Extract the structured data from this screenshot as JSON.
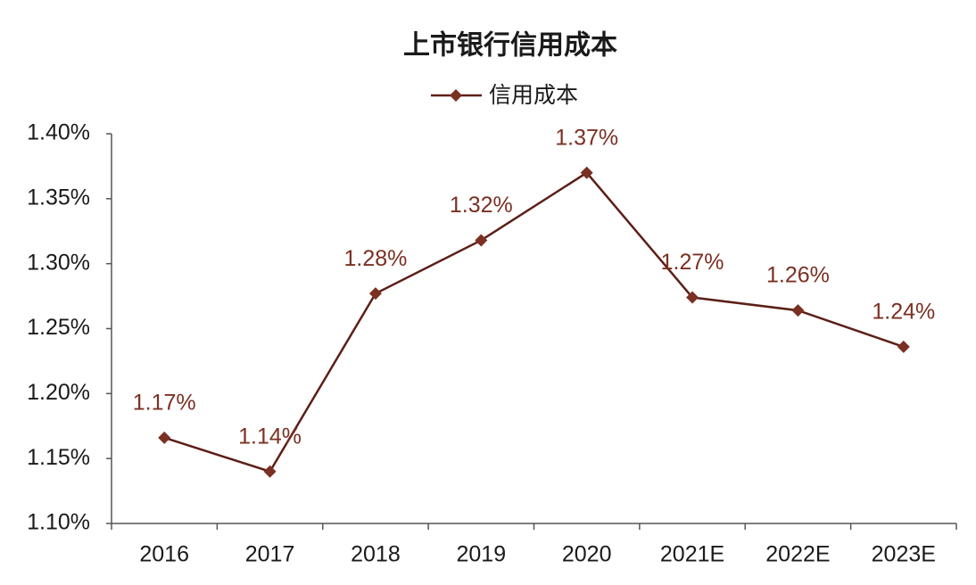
{
  "chart_data": {
    "type": "line",
    "title": "上市银行信用成本",
    "categories": [
      "2016",
      "2017",
      "2018",
      "2019",
      "2020",
      "2021E",
      "2022E",
      "2023E"
    ],
    "series": [
      {
        "name": "信用成本",
        "color": "#5c1f17",
        "marker_color": "#7a3022",
        "values": [
          1.166,
          1.14,
          1.277,
          1.318,
          1.37,
          1.274,
          1.264,
          1.236
        ],
        "value_labels": [
          "1.17%",
          "1.14%",
          "1.28%",
          "1.32%",
          "1.37%",
          "1.27%",
          "1.26%",
          "1.24%"
        ]
      }
    ],
    "ylim": [
      1.1,
      1.4
    ],
    "yticks": [
      {
        "value": 1.1,
        "label": "1.10%"
      },
      {
        "value": 1.15,
        "label": "1.15%"
      },
      {
        "value": 1.2,
        "label": "1.20%"
      },
      {
        "value": 1.25,
        "label": "1.25%"
      },
      {
        "value": 1.3,
        "label": "1.30%"
      },
      {
        "value": 1.35,
        "label": "1.35%"
      },
      {
        "value": 1.4,
        "label": "1.40%"
      }
    ],
    "grid": false
  }
}
